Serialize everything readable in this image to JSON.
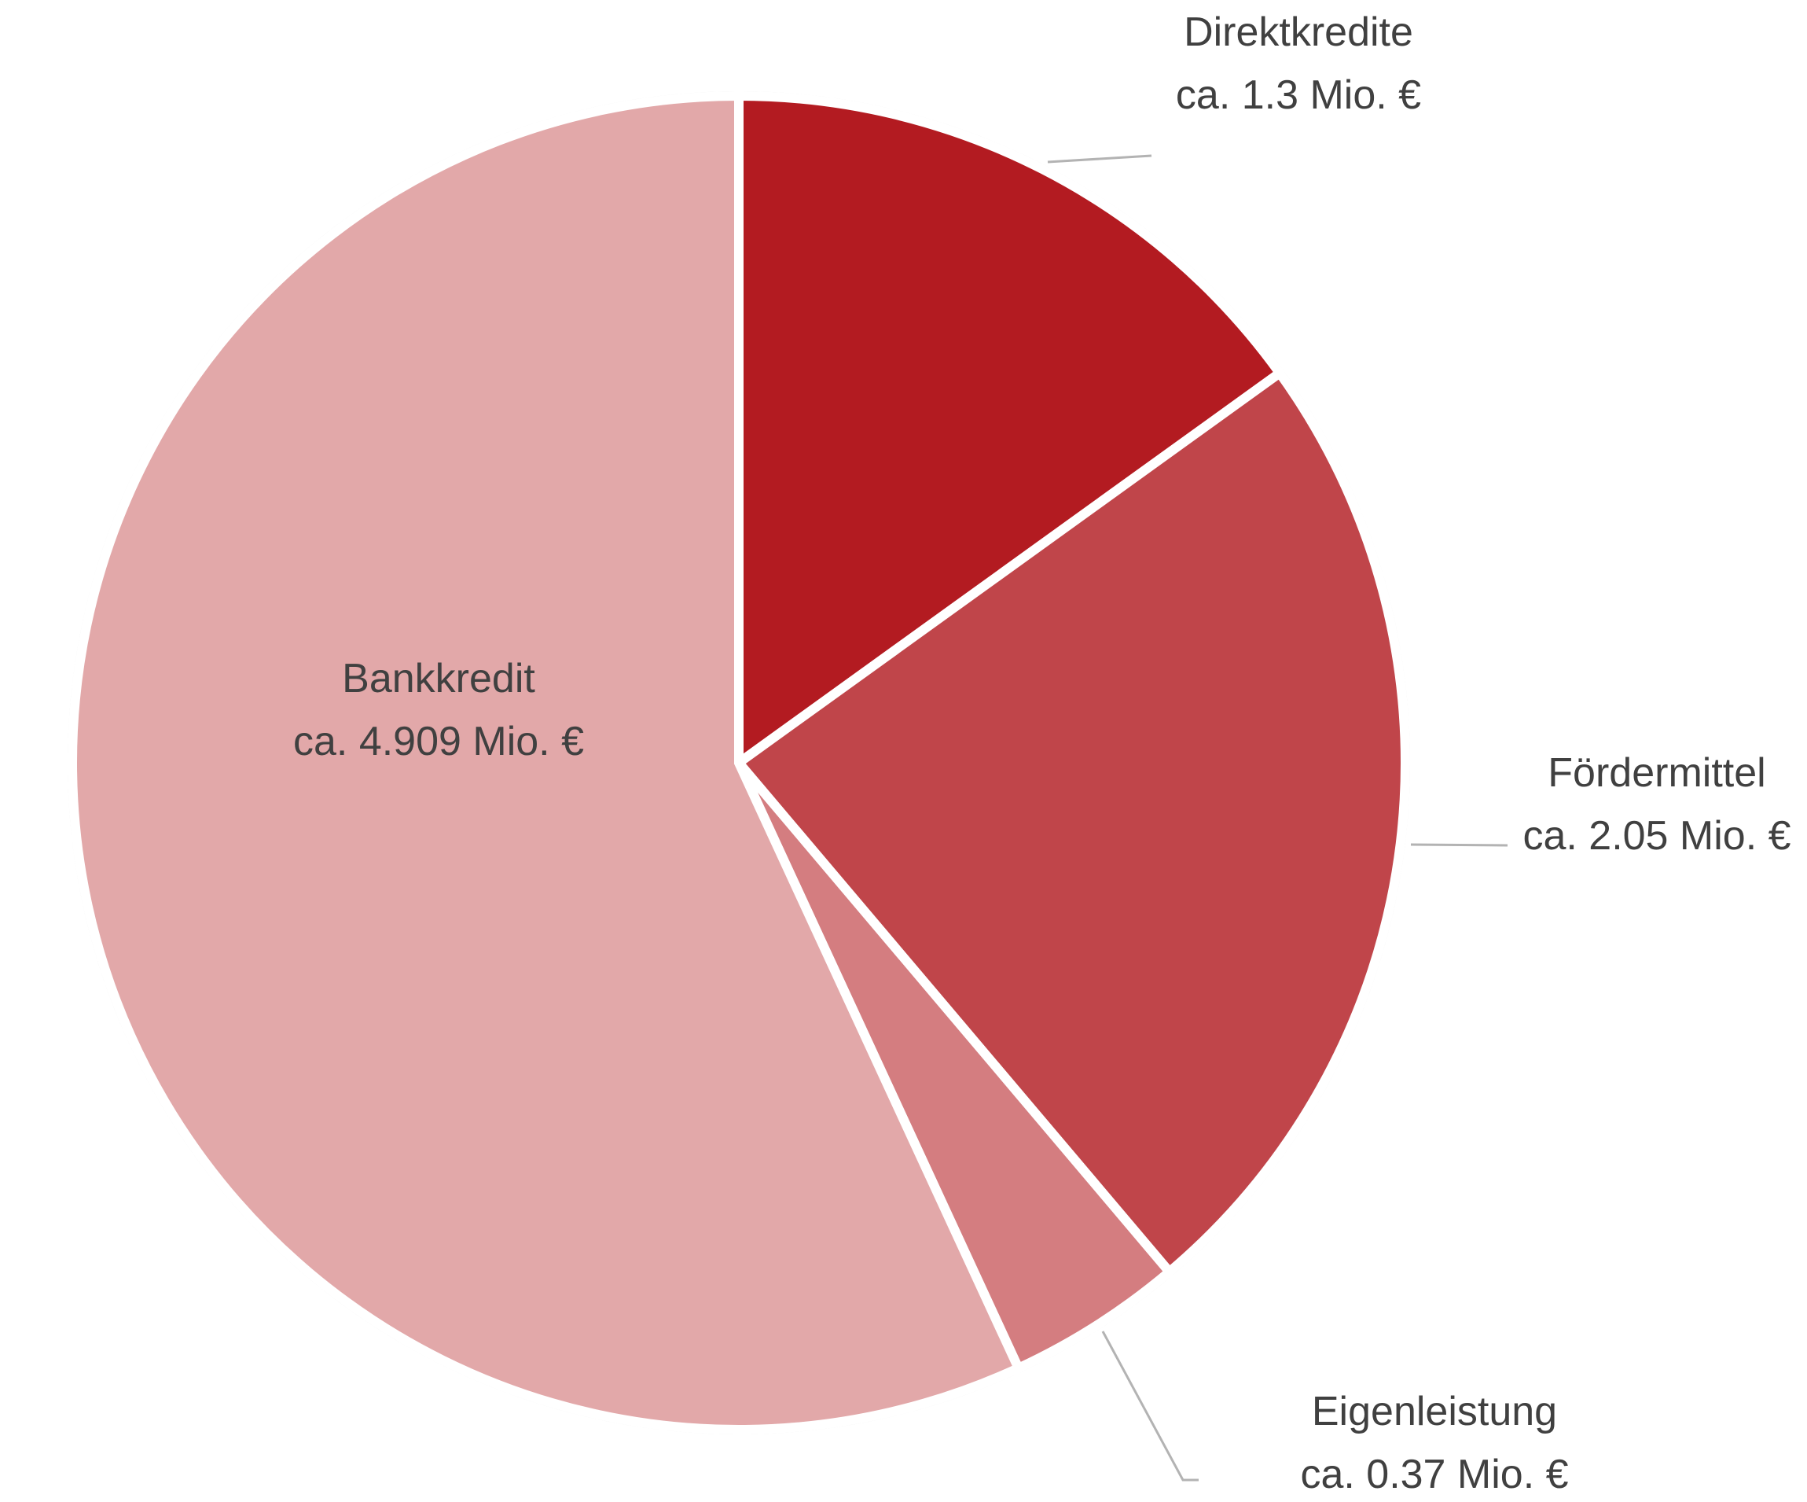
{
  "chart_data": {
    "type": "pie",
    "title": "",
    "start_angle_deg": 0,
    "direction": "clockwise",
    "slices": [
      {
        "name": "Direktkredite",
        "label": "ca. 1.3 Mio. €",
        "value": 1.3,
        "color": "#b31b21"
      },
      {
        "name": "Fördermittel",
        "label": "ca. 2.05 Mio. €",
        "value": 2.05,
        "color": "#c0454a"
      },
      {
        "name": "Eigenleistung",
        "label": "ca. 0.37 Mio. €",
        "value": 0.37,
        "color": "#d47d80"
      },
      {
        "name": "Bankkredit",
        "label": "ca. 4.909 Mio. €",
        "value": 4.909,
        "color": "#e2a8a9"
      }
    ],
    "legend": "none",
    "border_color": "#eeeeee"
  }
}
